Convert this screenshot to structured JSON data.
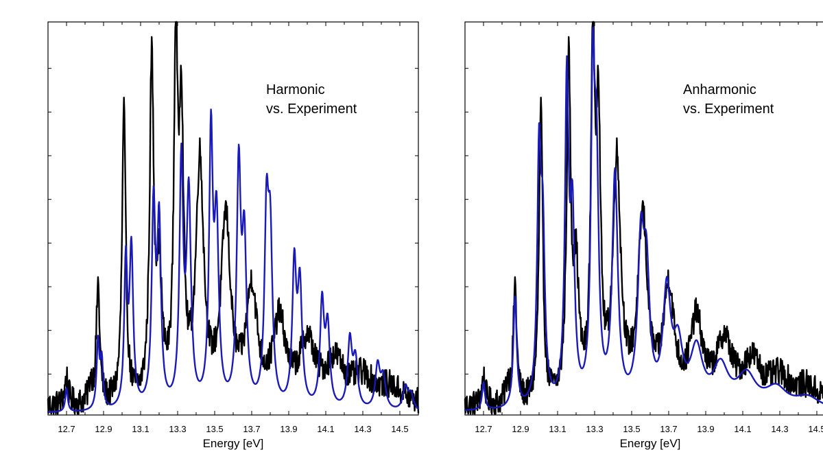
{
  "chart_data": [
    {
      "type": "line",
      "title": "",
      "xlabel": "Energy [eV]",
      "ylabel": "",
      "xlim": [
        12.6,
        14.6
      ],
      "ylim": [
        0,
        1.0
      ],
      "x_ticks": [
        "12.7",
        "12.9",
        "13.1",
        "13.3",
        "13.5",
        "13.7",
        "13.9",
        "14.1",
        "14.3",
        "14.5"
      ],
      "grid": false,
      "annotation": [
        "Harmonic",
        "vs. Experiment"
      ],
      "series": [
        {
          "color": "#000000",
          "peaks": [
            [
              12.7,
              0.07,
              0.012
            ],
            [
              12.83,
              0.05,
              0.012
            ],
            [
              12.87,
              0.3,
              0.011
            ],
            [
              13.01,
              0.74,
              0.012
            ],
            [
              13.16,
              0.84,
              0.013
            ],
            [
              13.2,
              0.3,
              0.018
            ],
            [
              13.29,
              0.86,
              0.012
            ],
            [
              13.32,
              0.7,
              0.014
            ],
            [
              13.42,
              0.6,
              0.025
            ],
            [
              13.56,
              0.46,
              0.03
            ],
            [
              13.7,
              0.28,
              0.035
            ],
            [
              13.85,
              0.2,
              0.04
            ],
            [
              14.0,
              0.15,
              0.05
            ],
            [
              14.15,
              0.1,
              0.06
            ],
            [
              14.3,
              0.06,
              0.07
            ],
            [
              14.45,
              0.04,
              0.08
            ]
          ],
          "baseline": 0.02,
          "noise": 0.035
        },
        {
          "color": "#1a1ab8",
          "peaks": [
            [
              12.7,
              0.06,
              0.008
            ],
            [
              12.87,
              0.17,
              0.009
            ],
            [
              12.89,
              0.12,
              0.009
            ],
            [
              13.02,
              0.36,
              0.01
            ],
            [
              13.05,
              0.4,
              0.012
            ],
            [
              13.17,
              0.5,
              0.012
            ],
            [
              13.2,
              0.45,
              0.012
            ],
            [
              13.32,
              0.61,
              0.012
            ],
            [
              13.36,
              0.53,
              0.014
            ],
            [
              13.48,
              0.67,
              0.012
            ],
            [
              13.51,
              0.45,
              0.014
            ],
            [
              13.63,
              0.59,
              0.013
            ],
            [
              13.66,
              0.4,
              0.014
            ],
            [
              13.78,
              0.45,
              0.013
            ],
            [
              13.8,
              0.4,
              0.014
            ],
            [
              13.93,
              0.35,
              0.013
            ],
            [
              13.96,
              0.3,
              0.014
            ],
            [
              14.08,
              0.26,
              0.013
            ],
            [
              14.11,
              0.2,
              0.014
            ],
            [
              14.23,
              0.17,
              0.014
            ],
            [
              14.26,
              0.12,
              0.015
            ],
            [
              14.38,
              0.11,
              0.015
            ],
            [
              14.41,
              0.08,
              0.016
            ],
            [
              14.53,
              0.06,
              0.016
            ],
            [
              14.56,
              0.04,
              0.016
            ]
          ],
          "baseline": 0.005,
          "noise": 0.0
        }
      ]
    },
    {
      "type": "line",
      "title": "",
      "xlabel": "Energy [eV]",
      "ylabel": "",
      "xlim": [
        12.6,
        14.6
      ],
      "ylim": [
        0,
        1.0
      ],
      "x_ticks": [
        "12.7",
        "12.9",
        "13.1",
        "13.3",
        "13.5",
        "13.7",
        "13.9",
        "14.1",
        "14.3",
        "14.5"
      ],
      "grid": false,
      "annotation": [
        "Anharmonic",
        "vs. Experiment"
      ],
      "series": [
        {
          "color": "#000000",
          "peaks": [
            [
              12.7,
              0.07,
              0.012
            ],
            [
              12.83,
              0.05,
              0.012
            ],
            [
              12.87,
              0.3,
              0.011
            ],
            [
              13.01,
              0.74,
              0.012
            ],
            [
              13.16,
              0.84,
              0.013
            ],
            [
              13.2,
              0.3,
              0.018
            ],
            [
              13.29,
              0.86,
              0.012
            ],
            [
              13.32,
              0.7,
              0.014
            ],
            [
              13.42,
              0.6,
              0.025
            ],
            [
              13.56,
              0.46,
              0.03
            ],
            [
              13.7,
              0.28,
              0.035
            ],
            [
              13.85,
              0.2,
              0.04
            ],
            [
              14.0,
              0.15,
              0.05
            ],
            [
              14.15,
              0.1,
              0.06
            ],
            [
              14.3,
              0.06,
              0.07
            ],
            [
              14.45,
              0.04,
              0.08
            ]
          ],
          "baseline": 0.02,
          "noise": 0.035
        },
        {
          "color": "#1a1ab8",
          "peaks": [
            [
              12.7,
              0.07,
              0.009
            ],
            [
              12.87,
              0.28,
              0.011
            ],
            [
              13.0,
              0.6,
              0.012
            ],
            [
              13.02,
              0.4,
              0.013
            ],
            [
              13.15,
              0.8,
              0.012
            ],
            [
              13.18,
              0.45,
              0.014
            ],
            [
              13.29,
              0.76,
              0.012
            ],
            [
              13.31,
              0.55,
              0.014
            ],
            [
              13.41,
              0.58,
              0.018
            ],
            [
              13.55,
              0.38,
              0.02
            ],
            [
              13.58,
              0.3,
              0.02
            ],
            [
              13.69,
              0.28,
              0.025
            ],
            [
              13.75,
              0.14,
              0.03
            ],
            [
              13.85,
              0.14,
              0.04
            ],
            [
              13.98,
              0.1,
              0.05
            ],
            [
              14.12,
              0.08,
              0.06
            ],
            [
              14.28,
              0.05,
              0.07
            ],
            [
              14.45,
              0.03,
              0.08
            ]
          ],
          "baseline": 0.008,
          "noise": 0.0
        }
      ]
    }
  ]
}
